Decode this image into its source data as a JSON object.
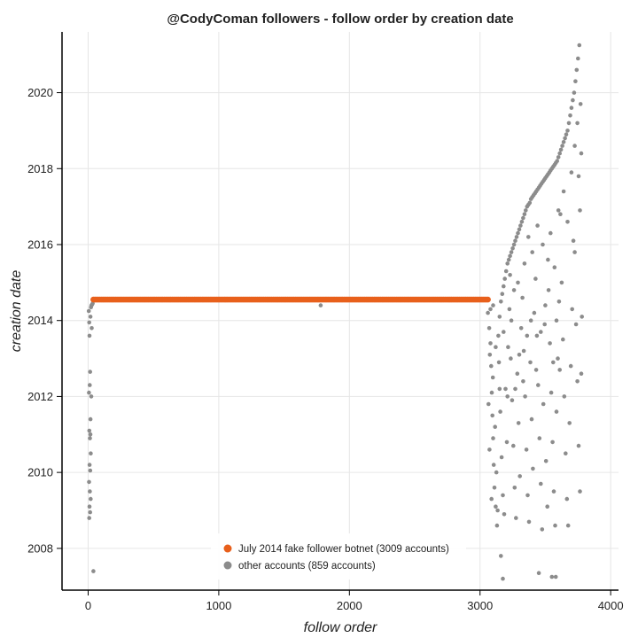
{
  "chart_data": {
    "type": "scatter",
    "title": "@CodyComan followers - follow order by creation date",
    "xlabel": "follow order",
    "ylabel": "creation date",
    "xlim": [
      -200,
      4060
    ],
    "ylim": [
      2006.9,
      2021.6
    ],
    "xticks": [
      0,
      1000,
      2000,
      3000,
      4000
    ],
    "yticks": [
      2008,
      2010,
      2012,
      2014,
      2016,
      2018,
      2020
    ],
    "grid": true,
    "legend_position": "bottom-center",
    "series": [
      {
        "name": "July 2014 fake follower botnet (3009 accounts)",
        "color": "#e8601c",
        "segment": {
          "x_start": 40,
          "x_end": 3060,
          "y": 2014.55
        }
      },
      {
        "name": "other accounts (859 accounts)",
        "color": "#8c8c8c",
        "points": [
          [
            5,
            2014.25
          ],
          [
            8,
            2013.95
          ],
          [
            10,
            2013.6
          ],
          [
            12,
            2012.3
          ],
          [
            15,
            2012.65
          ],
          [
            6,
            2012.1
          ],
          [
            18,
            2011.4
          ],
          [
            9,
            2011.1
          ],
          [
            14,
            2010.9
          ],
          [
            20,
            2010.5
          ],
          [
            11,
            2010.2
          ],
          [
            16,
            2010.05
          ],
          [
            7,
            2009.75
          ],
          [
            13,
            2009.5
          ],
          [
            19,
            2009.3
          ],
          [
            10,
            2009.1
          ],
          [
            15,
            2008.95
          ],
          [
            8,
            2008.8
          ],
          [
            22,
            2014.35
          ],
          [
            25,
            2014.4
          ],
          [
            30,
            2014.42
          ],
          [
            35,
            2014.45
          ],
          [
            18,
            2014.1
          ],
          [
            27,
            2013.8
          ],
          [
            24,
            2012.0
          ],
          [
            17,
            2011.0
          ],
          [
            40,
            2007.4
          ],
          [
            1780,
            2014.4
          ],
          [
            3060,
            2014.2
          ],
          [
            3070,
            2013.8
          ],
          [
            3080,
            2013.4
          ],
          [
            3085,
            2012.8
          ],
          [
            3090,
            2012.1
          ],
          [
            3095,
            2011.5
          ],
          [
            3100,
            2010.9
          ],
          [
            3105,
            2010.2
          ],
          [
            3110,
            2009.6
          ],
          [
            3120,
            2009.1
          ],
          [
            3130,
            2008.6
          ],
          [
            3075,
            2013.1
          ],
          [
            3065,
            2011.8
          ],
          [
            3072,
            2010.6
          ],
          [
            3088,
            2009.3
          ],
          [
            3098,
            2012.5
          ],
          [
            3115,
            2011.2
          ],
          [
            3125,
            2010.0
          ],
          [
            3135,
            2009.0
          ],
          [
            3140,
            2013.6
          ],
          [
            3150,
            2014.1
          ],
          [
            3160,
            2014.5
          ],
          [
            3170,
            2014.7
          ],
          [
            3180,
            2014.9
          ],
          [
            3190,
            2015.1
          ],
          [
            3200,
            2015.3
          ],
          [
            3210,
            2015.5
          ],
          [
            3145,
            2012.9
          ],
          [
            3155,
            2011.6
          ],
          [
            3165,
            2010.4
          ],
          [
            3175,
            2009.4
          ],
          [
            3185,
            2008.9
          ],
          [
            3195,
            2012.2
          ],
          [
            3205,
            2010.8
          ],
          [
            3215,
            2013.3
          ],
          [
            3160,
            2007.8
          ],
          [
            3175,
            2007.2
          ],
          [
            3220,
            2015.6
          ],
          [
            3230,
            2015.7
          ],
          [
            3240,
            2015.8
          ],
          [
            3250,
            2015.9
          ],
          [
            3260,
            2016.0
          ],
          [
            3270,
            2016.1
          ],
          [
            3280,
            2016.2
          ],
          [
            3290,
            2016.3
          ],
          [
            3300,
            2016.4
          ],
          [
            3310,
            2016.5
          ],
          [
            3225,
            2014.3
          ],
          [
            3235,
            2013.0
          ],
          [
            3245,
            2011.9
          ],
          [
            3255,
            2010.7
          ],
          [
            3265,
            2009.6
          ],
          [
            3275,
            2008.8
          ],
          [
            3285,
            2012.6
          ],
          [
            3295,
            2011.3
          ],
          [
            3305,
            2009.9
          ],
          [
            3315,
            2013.8
          ],
          [
            3230,
            2015.2
          ],
          [
            3260,
            2014.8
          ],
          [
            3290,
            2015.0
          ],
          [
            3320,
            2016.6
          ],
          [
            3330,
            2016.7
          ],
          [
            3340,
            2016.8
          ],
          [
            3350,
            2016.9
          ],
          [
            3360,
            2017.0
          ],
          [
            3370,
            2017.05
          ],
          [
            3380,
            2017.1
          ],
          [
            3390,
            2017.2
          ],
          [
            3400,
            2017.25
          ],
          [
            3410,
            2017.3
          ],
          [
            3325,
            2014.6
          ],
          [
            3335,
            2013.2
          ],
          [
            3345,
            2012.0
          ],
          [
            3355,
            2010.6
          ],
          [
            3365,
            2009.4
          ],
          [
            3375,
            2008.7
          ],
          [
            3385,
            2012.9
          ],
          [
            3395,
            2011.4
          ],
          [
            3405,
            2010.1
          ],
          [
            3415,
            2014.2
          ],
          [
            3340,
            2015.5
          ],
          [
            3370,
            2016.2
          ],
          [
            3400,
            2015.8
          ],
          [
            3420,
            2017.35
          ],
          [
            3430,
            2017.4
          ],
          [
            3440,
            2017.45
          ],
          [
            3450,
            2017.5
          ],
          [
            3460,
            2017.55
          ],
          [
            3470,
            2017.6
          ],
          [
            3480,
            2017.65
          ],
          [
            3490,
            2017.7
          ],
          [
            3500,
            2017.75
          ],
          [
            3510,
            2017.8
          ],
          [
            3425,
            2015.1
          ],
          [
            3435,
            2013.6
          ],
          [
            3445,
            2012.3
          ],
          [
            3455,
            2010.9
          ],
          [
            3465,
            2009.7
          ],
          [
            3475,
            2008.5
          ],
          [
            3485,
            2011.8
          ],
          [
            3495,
            2013.9
          ],
          [
            3505,
            2010.3
          ],
          [
            3515,
            2009.1
          ],
          [
            3450,
            2007.35
          ],
          [
            3550,
            2007.25
          ],
          [
            3580,
            2007.25
          ],
          [
            3440,
            2016.5
          ],
          [
            3480,
            2016.0
          ],
          [
            3520,
            2015.6
          ],
          [
            3520,
            2017.85
          ],
          [
            3530,
            2017.9
          ],
          [
            3540,
            2017.95
          ],
          [
            3550,
            2018.0
          ],
          [
            3560,
            2018.05
          ],
          [
            3570,
            2018.1
          ],
          [
            3580,
            2018.15
          ],
          [
            3590,
            2018.2
          ],
          [
            3600,
            2018.3
          ],
          [
            3610,
            2018.4
          ],
          [
            3525,
            2014.8
          ],
          [
            3535,
            2013.4
          ],
          [
            3545,
            2012.1
          ],
          [
            3555,
            2010.8
          ],
          [
            3565,
            2009.5
          ],
          [
            3575,
            2008.6
          ],
          [
            3585,
            2011.6
          ],
          [
            3595,
            2013.0
          ],
          [
            3605,
            2014.5
          ],
          [
            3615,
            2016.8
          ],
          [
            3540,
            2016.3
          ],
          [
            3570,
            2015.4
          ],
          [
            3600,
            2016.9
          ],
          [
            3620,
            2018.5
          ],
          [
            3630,
            2018.6
          ],
          [
            3640,
            2018.7
          ],
          [
            3650,
            2018.8
          ],
          [
            3660,
            2018.9
          ],
          [
            3670,
            2019.0
          ],
          [
            3680,
            2019.2
          ],
          [
            3690,
            2019.4
          ],
          [
            3700,
            2019.6
          ],
          [
            3710,
            2019.8
          ],
          [
            3625,
            2015.0
          ],
          [
            3635,
            2013.5
          ],
          [
            3645,
            2012.0
          ],
          [
            3655,
            2010.5
          ],
          [
            3665,
            2009.3
          ],
          [
            3675,
            2008.6
          ],
          [
            3685,
            2011.3
          ],
          [
            3695,
            2012.8
          ],
          [
            3705,
            2014.3
          ],
          [
            3715,
            2016.1
          ],
          [
            3640,
            2017.4
          ],
          [
            3670,
            2016.6
          ],
          [
            3700,
            2017.9
          ],
          [
            3720,
            2020.0
          ],
          [
            3730,
            2020.3
          ],
          [
            3740,
            2020.6
          ],
          [
            3750,
            2020.9
          ],
          [
            3760,
            2021.25
          ],
          [
            3725,
            2015.8
          ],
          [
            3735,
            2013.9
          ],
          [
            3745,
            2012.4
          ],
          [
            3755,
            2010.7
          ],
          [
            3765,
            2009.5
          ],
          [
            3725,
            2018.6
          ],
          [
            3745,
            2019.2
          ],
          [
            3755,
            2017.8
          ],
          [
            3765,
            2016.9
          ],
          [
            3770,
            2019.7
          ],
          [
            3775,
            2018.4
          ],
          [
            3775,
            2012.6
          ],
          [
            3780,
            2014.1
          ],
          [
            3610,
            2012.7
          ],
          [
            3585,
            2014.0
          ],
          [
            3560,
            2012.9
          ],
          [
            3500,
            2014.4
          ],
          [
            3465,
            2013.7
          ],
          [
            3430,
            2012.7
          ],
          [
            3390,
            2014.0
          ],
          [
            3360,
            2013.6
          ],
          [
            3330,
            2012.4
          ],
          [
            3300,
            2013.1
          ],
          [
            3270,
            2012.2
          ],
          [
            3240,
            2014.0
          ],
          [
            3210,
            2012.0
          ],
          [
            3180,
            2013.7
          ],
          [
            3150,
            2012.2
          ],
          [
            3120,
            2013.3
          ],
          [
            3100,
            2014.4
          ],
          [
            3080,
            2014.3
          ]
        ]
      }
    ]
  }
}
